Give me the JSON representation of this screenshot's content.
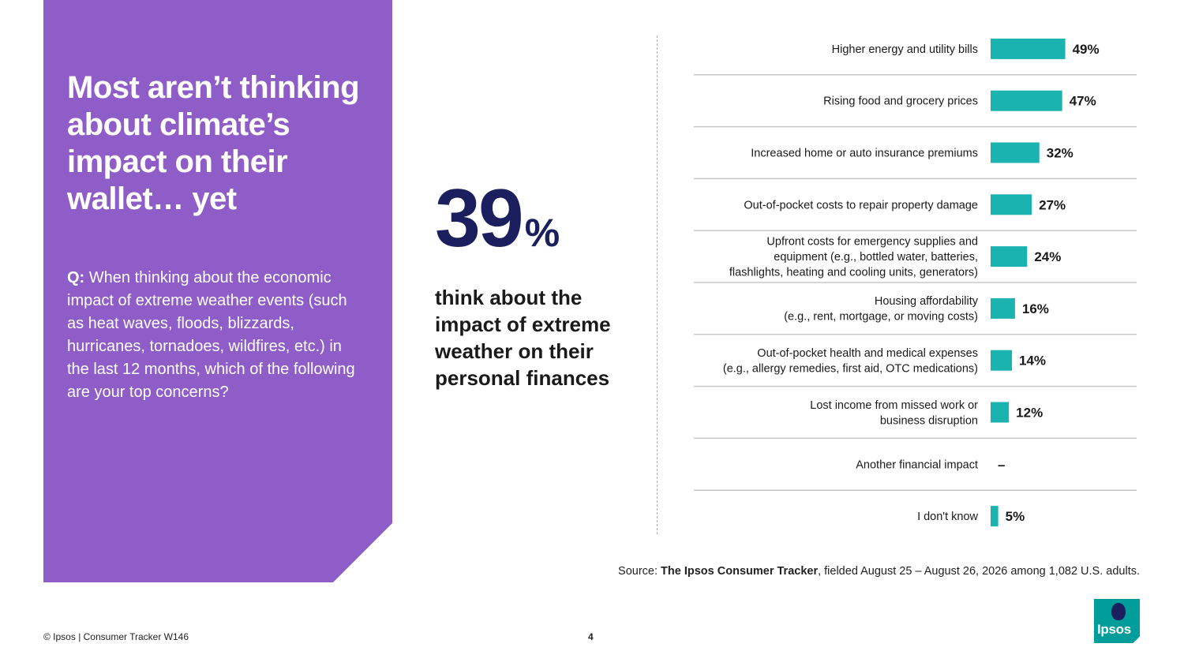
{
  "headline": "Most aren’t thinking about climate’s impact on their wallet… yet",
  "question": {
    "prefix": "Q:",
    "text": "When thinking about the economic impact of extreme weather events (such as heat waves, floods, blizzards, hurricanes, tornadoes, wildfires, etc.) in the last 12 months, which of the following are your top concerns?"
  },
  "stat": {
    "number": "39",
    "suffix": "%",
    "caption": "think about the impact of extreme weather on their personal finances"
  },
  "chart_data": {
    "type": "bar",
    "orientation": "horizontal",
    "bar_color": "#1ab3b0",
    "categories": [
      [
        "Higher energy and utility bills"
      ],
      [
        "Rising food and grocery prices"
      ],
      [
        "Increased home or auto insurance premiums"
      ],
      [
        "Out-of-pocket costs to repair property damage"
      ],
      [
        "Upfront costs for emergency supplies and",
        "equipment (e.g., bottled water, batteries,",
        "flashlights, heating and cooling units, generators)"
      ],
      [
        "Housing affordability",
        "(e.g., rent, mortgage, or moving costs)"
      ],
      [
        "Out-of-pocket health and medical expenses",
        "(e.g., allergy remedies, first aid, OTC medications)"
      ],
      [
        "Lost income from missed work or",
        "business disruption"
      ],
      [
        "Another financial impact"
      ],
      [
        "I don't know"
      ]
    ],
    "values": [
      49,
      47,
      32,
      27,
      24,
      16,
      14,
      12,
      null,
      5
    ],
    "labels": [
      "49%",
      "47%",
      "32%",
      "27%",
      "24%",
      "16%",
      "14%",
      "12%",
      "–",
      "5%"
    ]
  },
  "source": {
    "prefix": "Source: ",
    "title": "The Ipsos Consumer Tracker",
    "suffix": ", fielded August 25 – August 26, 2026 among 1,082 U.S. adults."
  },
  "footer": {
    "copyright": "© Ipsos | Consumer Tracker W146",
    "page": "4"
  },
  "logo": {
    "text": "Ipsos",
    "color": "#009d9a"
  }
}
